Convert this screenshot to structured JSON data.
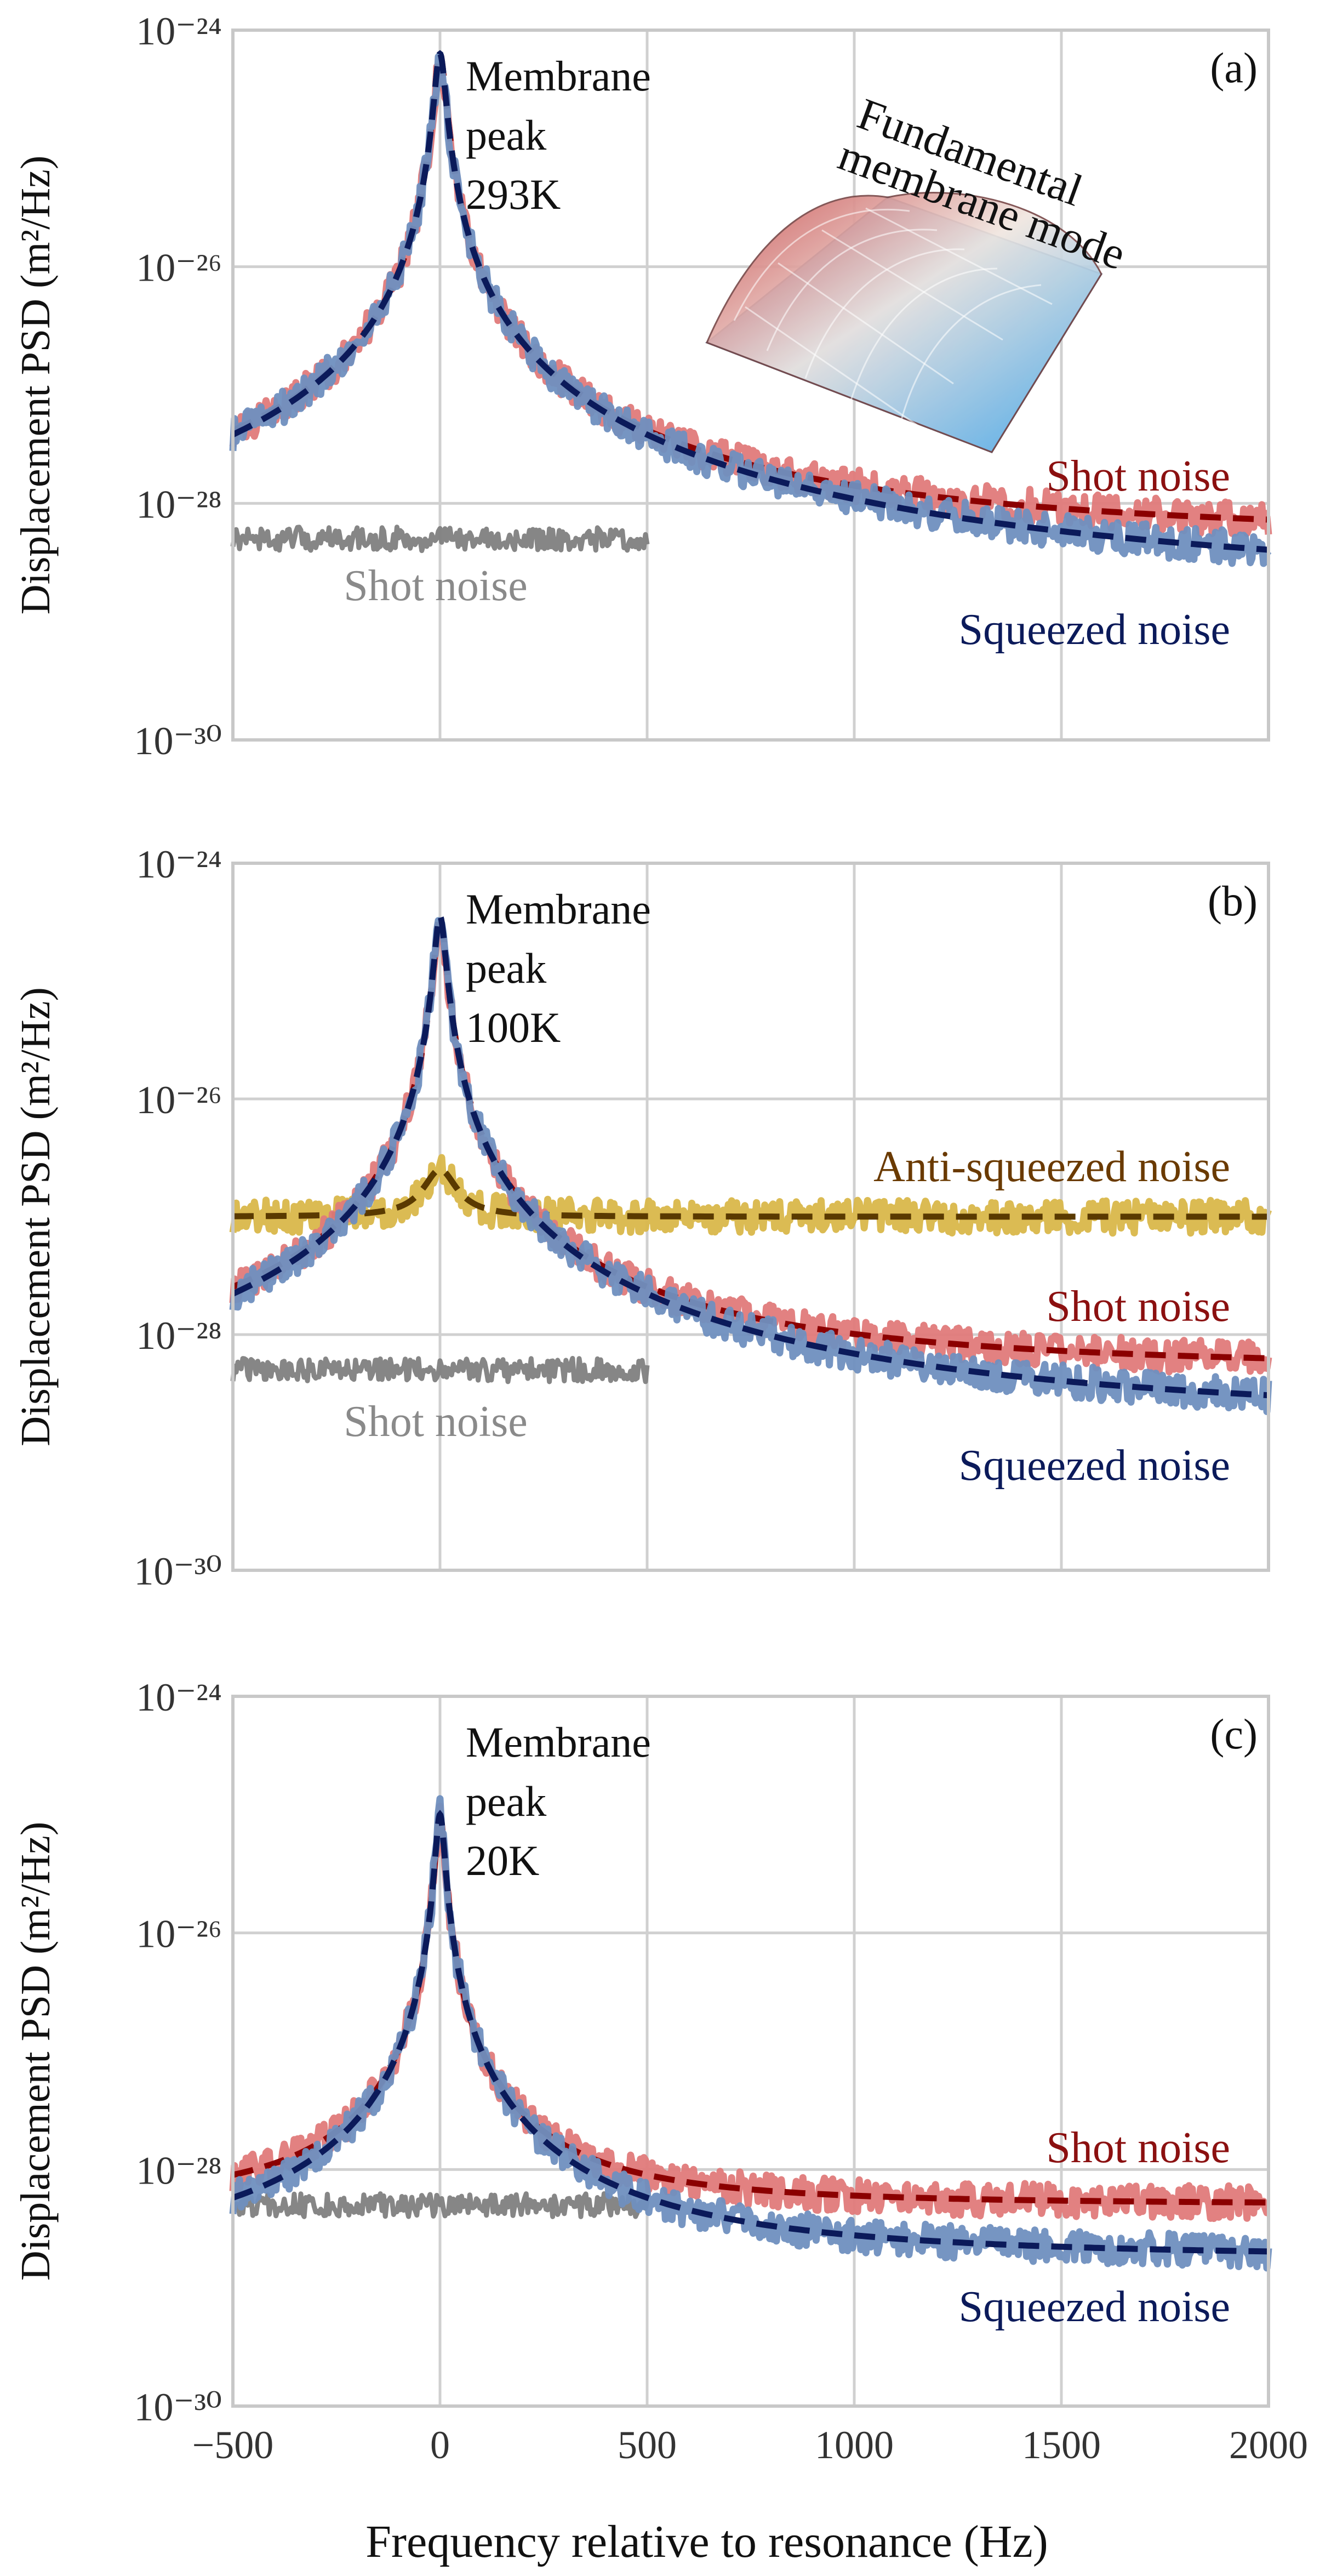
{
  "figure": {
    "xlabel": "Frequency relative to resonance (Hz)",
    "ylabel": "Displacement PSD (m²/Hz)"
  },
  "inset": {
    "label_line1": "Fundamental",
    "label_line2": "membrane mode"
  },
  "chart_data": [
    {
      "type": "line",
      "panel": "(a)",
      "peak_label": [
        "Membrane",
        "peak",
        "293K"
      ],
      "xlabel": "Frequency relative to resonance (Hz)",
      "ylabel": "Displacement PSD (m²/Hz)",
      "xlim": [
        -500,
        2000
      ],
      "ylim_log10": [
        -30,
        -24
      ],
      "xticks": [
        -500,
        0,
        500,
        1000,
        1500,
        2000
      ],
      "yticks": [
        "10⁻³⁰",
        "10⁻²⁸",
        "10⁻²⁶",
        "10⁻²⁴"
      ],
      "series": [
        {
          "name": "Shot noise",
          "kind": "background",
          "color": "#808080",
          "log10_floor": -28.3,
          "peak_log10": -28.3,
          "width_hz": 0
        },
        {
          "name": "Shot noise",
          "kind": "total",
          "color": "#e07a7a",
          "fit_color": "#8b0000",
          "log10_floor": -28.3,
          "peak_log10": -24.2,
          "width_hz": 12,
          "fit": "dashed"
        },
        {
          "name": "Squeezed noise",
          "kind": "total",
          "color": "#6f8fbf",
          "fit_color": "#0b1a5a",
          "log10_floor": -28.75,
          "peak_log10": -24.2,
          "width_hz": 12,
          "fit": "dashed"
        }
      ],
      "labels": {
        "shot_grey": "Shot noise",
        "shot_red": "Shot noise",
        "squeezed": "Squeezed noise"
      }
    },
    {
      "type": "line",
      "panel": "(b)",
      "peak_label": [
        "Membrane",
        "peak",
        "100K"
      ],
      "xlabel": "Frequency relative to resonance (Hz)",
      "ylabel": "Displacement PSD (m²/Hz)",
      "xlim": [
        -500,
        2000
      ],
      "ylim_log10": [
        -30,
        -24
      ],
      "xticks": [
        -500,
        0,
        500,
        1000,
        1500,
        2000
      ],
      "yticks": [
        "10⁻³⁰",
        "10⁻²⁸",
        "10⁻²⁶",
        "10⁻²⁴"
      ],
      "series": [
        {
          "name": "Anti-squeezed noise",
          "kind": "total",
          "color": "#d9b74a",
          "fit_color": "#5a3a00",
          "log10_floor": -27.0,
          "peak_log10": -26.6,
          "width_hz": 40,
          "fit": "dashed"
        },
        {
          "name": "Shot noise",
          "kind": "background",
          "color": "#808080",
          "log10_floor": -28.3,
          "peak_log10": -28.3,
          "width_hz": 0
        },
        {
          "name": "Shot noise",
          "kind": "total",
          "color": "#e07a7a",
          "fit_color": "#8b0000",
          "log10_floor": -28.3,
          "peak_log10": -24.45,
          "width_hz": 12,
          "fit": "dashed"
        },
        {
          "name": "Squeezed noise",
          "kind": "total",
          "color": "#6f8fbf",
          "fit_color": "#0b1a5a",
          "log10_floor": -28.75,
          "peak_log10": -24.45,
          "width_hz": 12,
          "fit": "dashed"
        }
      ],
      "labels": {
        "anti": "Anti-squeezed noise",
        "shot_grey": "Shot noise",
        "shot_red": "Shot noise",
        "squeezed": "Squeezed noise"
      }
    },
    {
      "type": "line",
      "panel": "(c)",
      "peak_label": [
        "Membrane",
        "peak",
        "20K"
      ],
      "xlabel": "Frequency relative to resonance (Hz)",
      "ylabel": "Displacement PSD (m²/Hz)",
      "xlim": [
        -500,
        2000
      ],
      "ylim_log10": [
        -30,
        -24
      ],
      "xticks": [
        -500,
        0,
        500,
        1000,
        1500,
        2000
      ],
      "yticks": [
        "10⁻³⁰",
        "10⁻²⁸",
        "10⁻²⁶",
        "10⁻²⁴"
      ],
      "series": [
        {
          "name": "Shot noise",
          "kind": "background",
          "color": "#808080",
          "log10_floor": -28.3,
          "peak_log10": -28.3,
          "width_hz": 0
        },
        {
          "name": "Shot noise",
          "kind": "total",
          "color": "#e07a7a",
          "fit_color": "#8b0000",
          "log10_floor": -28.3,
          "peak_log10": -25.0,
          "width_hz": 10,
          "fit": "dashed"
        },
        {
          "name": "Squeezed noise",
          "kind": "total",
          "color": "#6f8fbf",
          "fit_color": "#0b1a5a",
          "log10_floor": -28.75,
          "peak_log10": -25.0,
          "width_hz": 10,
          "fit": "dashed"
        }
      ],
      "labels": {
        "shot_red": "Shot noise",
        "squeezed": "Squeezed noise"
      }
    }
  ]
}
